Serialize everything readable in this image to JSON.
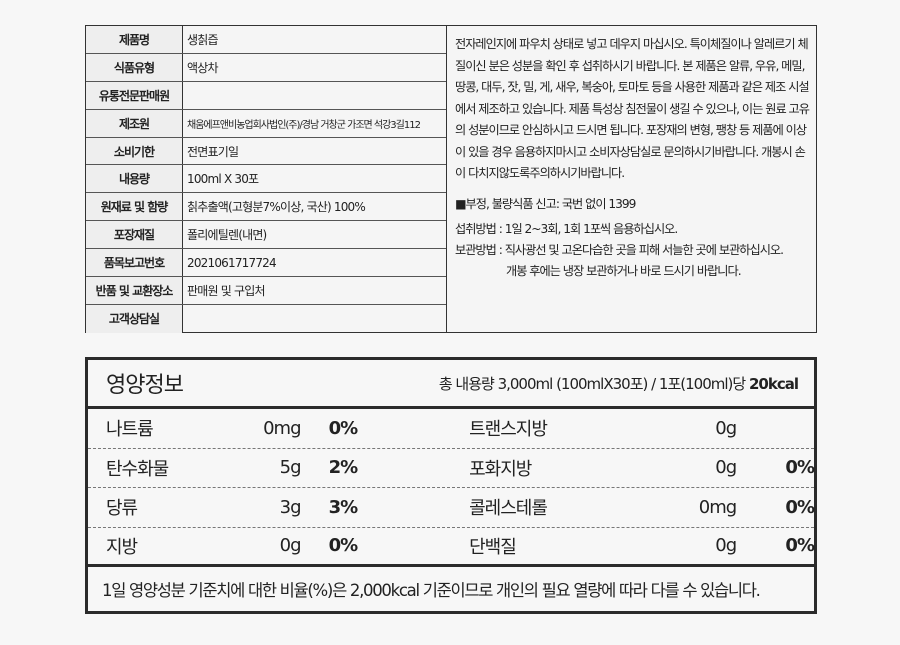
{
  "product_info": [
    {
      "label": "제품명",
      "value": "생칡즙"
    },
    {
      "label": "식품유형",
      "value": "액상차"
    },
    {
      "label": "유통전문판매원",
      "value": ""
    },
    {
      "label": "제조원",
      "value": "채움에프앤비농업회사법인(주)/경남 거창군 가조면 석강3길112"
    },
    {
      "label": "소비기한",
      "value": "전면표기일"
    },
    {
      "label": "내용량",
      "value": "100ml X 30포"
    },
    {
      "label": "원재료 및 함량",
      "value": "칡추출액(고형분7%이상, 국산) 100%"
    },
    {
      "label": "포장재질",
      "value": "폴리에틸렌(내면)"
    },
    {
      "label": "품목보고번호",
      "value": "2021061717724"
    },
    {
      "label": "반품 및 교환장소",
      "value": "판매원 및 구입처"
    },
    {
      "label": "고객상담실",
      "value": ""
    }
  ],
  "notes": {
    "caution": "전자레인지에 파우치 상태로  넣고 데우지 마십시오. 특이체질이나 알레르기 체질이신 분은 성분을 확인 후 섭취하시기 바랍니다. 본 제품은 알류, 우유, 메밀, 땅콩, 대두, 잣, 밀, 게, 새우, 복숭아, 토마토 등을 사용한 제품과 같은 제조 시설에서 제조하고 있습니다. 제품 특성상 침전물이 생길 수 있으나, 이는 원료 고유의 성분이므로 안심하시고 드시면 됩니다. 포장재의 변형, 팽창 등 제품에 이상이 있을 경우 음용하지마시고 소비자상담실로 문의하시기바랍니다. 개봉시 손이 다치지않도록주의하시기바랍니다.",
    "report": "■부정, 불량식품 신고: 국번 없이 1399",
    "intake": "섭취방법 : 1일 2~3회, 1회 1포씩 음용하십시오.",
    "storage": "보관방법 : 직사광선 및 고온다습한 곳을 피해 서늘한 곳에 보관하십시오.",
    "storage2": "개봉 후에는 냉장 보관하거나 바로 드시기 바랍니다."
  },
  "nutrition": {
    "title": "영양정보",
    "serving": "총 내용량 3,000ml (100mlX30포) / 1포(100ml)당",
    "calories": "20kcal",
    "rows": [
      {
        "l_name": "나트륨",
        "l_amt": "0mg",
        "l_pct": "0%",
        "r_name": "트랜스지방",
        "r_amt": "0g",
        "r_pct": ""
      },
      {
        "l_name": "탄수화물",
        "l_amt": "5g",
        "l_pct": "2%",
        "r_name": "포화지방",
        "r_amt": "0g",
        "r_pct": "0%"
      },
      {
        "l_name": "당류",
        "l_amt": "3g",
        "l_pct": "3%",
        "r_name": "콜레스테롤",
        "r_amt": "0mg",
        "r_pct": "0%"
      },
      {
        "l_name": "지방",
        "l_amt": "0g",
        "l_pct": "0%",
        "r_name": "단백질",
        "r_amt": "0g",
        "r_pct": "0%"
      }
    ],
    "footnote": "1일 영양성분 기준치에 대한 비율(%)은 2,000kcal 기준이므로 개인의 필요 열량에 따라 다를 수 있습니다."
  }
}
